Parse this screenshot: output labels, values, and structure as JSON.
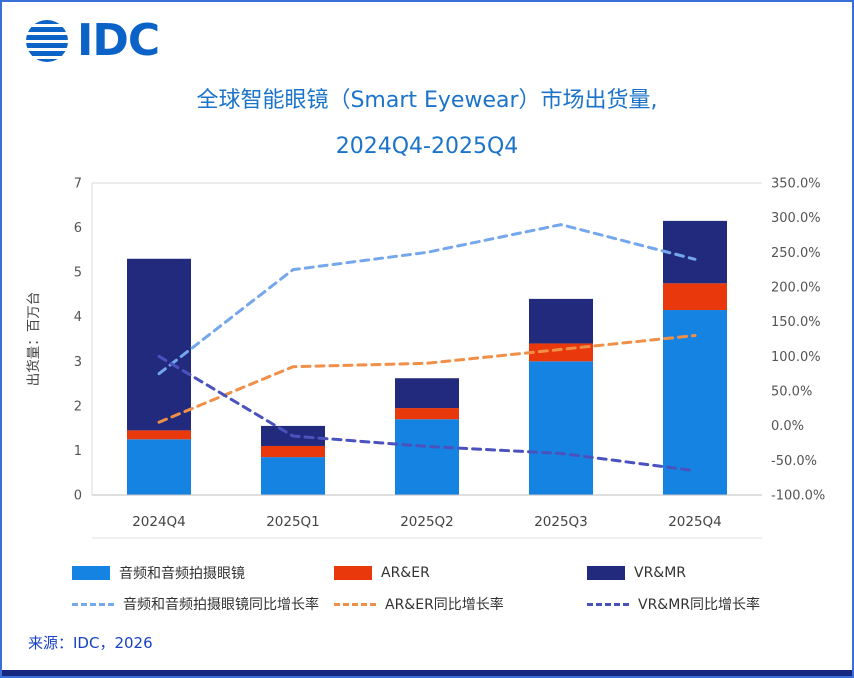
{
  "page": {
    "logo_text": "IDC",
    "source": "来源：IDC，2026"
  },
  "title": {
    "line1": "全球智能眼镜（Smart Eyewear）市场出货量,",
    "line2": "2024Q4-2025Q4"
  },
  "chart_data": {
    "type": "combo (stacked bar + dashed line, dual axis)",
    "categories": [
      "2024Q4",
      "2025Q1",
      "2025Q2",
      "2025Q3",
      "2025Q4"
    ],
    "bar_series": [
      {
        "name": "音频和音频拍摄眼镜",
        "color": "#1583E2",
        "values": [
          1.25,
          0.85,
          1.7,
          3.0,
          4.15
        ]
      },
      {
        "name": "AR&ER",
        "color": "#E8380C",
        "values": [
          0.2,
          0.25,
          0.25,
          0.4,
          0.6
        ]
      },
      {
        "name": "VR&MR",
        "color": "#212A7C",
        "values": [
          3.85,
          0.45,
          0.67,
          1.0,
          1.4
        ]
      }
    ],
    "line_series": [
      {
        "name": "音频和音频拍摄眼镜同比增长率",
        "color": "#74A7EC",
        "values": [
          75,
          225,
          250,
          290,
          240
        ]
      },
      {
        "name": "AR&ER同比增长率",
        "color": "#F09048",
        "values": [
          5,
          85,
          90,
          110,
          130
        ]
      },
      {
        "name": "VR&MR同比增长率",
        "color": "#4A52BD",
        "values": [
          100,
          -15,
          -30,
          -40,
          -65
        ]
      }
    ],
    "left_axis": {
      "label": "出货量：百万台",
      "min": 0,
      "max": 7,
      "step": 1
    },
    "right_axis": {
      "min": -100,
      "max": 350,
      "step": 50,
      "suffix": "%",
      "decimals": 1
    },
    "legend_position": "bottom",
    "grid": "top and bottom border lines only"
  }
}
